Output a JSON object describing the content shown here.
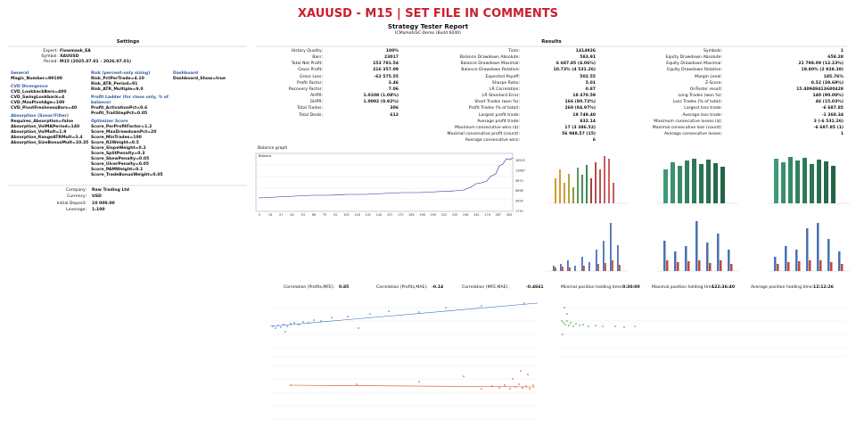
{
  "title": "XAUUSD - M15 | SET FILE IN COMMENTS",
  "report": {
    "heading": "Strategy Tester Report",
    "server": "ICMarketsSC-Demo (Build 6040)"
  },
  "settings": {
    "heading": "Settings",
    "info": [
      {
        "label": "Expert:",
        "value": "Flowmask_EA"
      },
      {
        "label": "Symbol:",
        "value": "XAUUSD"
      },
      {
        "label": "Period:",
        "value": "M15 (2025.07.01 - 2026.07.01)"
      }
    ],
    "columns": [
      [
        {
          "group": "General",
          "items": [
            "Magic_Number=99100"
          ]
        },
        {
          "group": "CVD Divergence",
          "items": [
            "CVD_LookbackBars=400",
            "CVD_SwingLookback=4",
            "CVD_MaxPivotAge=100",
            "CVD_PivotFreshnessBars=40"
          ]
        },
        {
          "group": "Absorption (Sonar/Filter)",
          "items": [
            "Requires_Absorption=false",
            "Absorption_VolMAPeriod=140",
            "Absorption_VolMult=1.9",
            "Absorption_RangeATRMult=3.4",
            "Absorption_SizeBonusMult=10.35"
          ]
        }
      ],
      [
        {
          "group": "Risk (percent-only sizing)",
          "items": [
            "Risk_PctPerTrade=4.10",
            "Risk_ATR_Period=91",
            "Risk_ATR_Multiple=9.0"
          ]
        },
        {
          "group": "Profit Ladder (for close only, % of balance)",
          "items": [
            "Profit_ActivationPct=0.6",
            "Profit_TrailStepPct=0.05"
          ]
        },
        {
          "group": "Optimizer Score",
          "items": [
            "Score_PerProfitFactor=1.2",
            "Score_MaxDrawdownPct=20",
            "Score_MinTrades=100",
            "Score_R2Weight=0.5",
            "Score_SlopeWeight=0.2",
            "Score_SplitPenalty=0.3",
            "Score_SkewPenalty=0.05",
            "Score_UlcerPenalty=0.05",
            "Score_PAMWeight=0.1",
            "Score_TradeBonusWeight=0.05"
          ]
        }
      ],
      [
        {
          "group": "Dashboard",
          "items": [
            "Dashboard_Show=true"
          ]
        }
      ]
    ],
    "account": [
      {
        "label": "Company:",
        "value": "Raw Trading Ltd"
      },
      {
        "label": "Currency:",
        "value": "USD"
      },
      {
        "label": "Initial Deposit:",
        "value": "10 000.00"
      },
      {
        "label": "Leverage:",
        "value": "1:100"
      }
    ]
  },
  "results": {
    "heading": "Results",
    "columns": [
      [
        {
          "label": "History Quality:",
          "value": "100%"
        },
        {
          "label": "Bars:",
          "value": "23017"
        },
        {
          "label": "Total Net Profit:",
          "value": "153 781.54"
        },
        {
          "label": "Gross Profit:",
          "value": "216 357.09"
        },
        {
          "label": "Gross Loss:",
          "value": "-62 575.55"
        },
        {
          "label": "Profit Factor:",
          "value": "3.46"
        },
        {
          "label": "Recovery Factor:",
          "value": "7.06"
        },
        {
          "label": "AHPR:",
          "value": "1.0108 (1.08%)"
        },
        {
          "label": "GHPR:",
          "value": "1.0092 (0.92%)"
        },
        {
          "label": "Total Trades:",
          "value": "306"
        },
        {
          "label": "Total Deals:",
          "value": "612"
        }
      ],
      [
        {
          "label": "Ticks:",
          "value": "1414926"
        },
        {
          "label": "Balance Drawdown Absolute:",
          "value": "583.91"
        },
        {
          "label": "Balance Drawdown Maximal:",
          "value": "6 687.85 (4.06%)"
        },
        {
          "label": "Balance Drawdown Relative:",
          "value": "10.73% (4 531.26)"
        },
        {
          "label": "Expected Payoff:",
          "value": "502.55"
        },
        {
          "label": "Sharpe Ratio:",
          "value": "5.01"
        },
        {
          "label": "LR Correlation:",
          "value": "0.87"
        },
        {
          "label": "LR Standard Error:",
          "value": "18 470.59"
        },
        {
          "label": "Short Trades (won %):",
          "value": "166 (80.72%)"
        },
        {
          "label": "Profit Trades (% of total):",
          "value": "260 (84.97%)"
        },
        {
          "label": "Largest profit trade:",
          "value": "19 749.40"
        },
        {
          "label": "Average profit trade:",
          "value": "832.14"
        },
        {
          "label": "Maximum consecutive wins ($):",
          "value": "17 (3 386.52)"
        },
        {
          "label": "Maximal consecutive profit (count):",
          "value": "56 988.57 (15)"
        },
        {
          "label": "Average consecutive wins:",
          "value": "6"
        }
      ],
      [
        {
          "label": "Symbols:",
          "value": "1"
        },
        {
          "label": "Equity Drawdown Absolute:",
          "value": "658.28"
        },
        {
          "label": "Equity Drawdown Maximal:",
          "value": "21 798.09 (12.23%)"
        },
        {
          "label": "Equity Drawdown Relative:",
          "value": "19.80% (2 928.38)"
        },
        {
          "label": "Margin Level:",
          "value": "185.76%"
        },
        {
          "label": "Z-Score:",
          "value": "0.52 (39.69%)"
        },
        {
          "label": "OnTester result:",
          "value": "15.40949413680428"
        },
        {
          "label": "Long Trades (won %):",
          "value": "140 (90.00%)"
        },
        {
          "label": "Loss Trades (% of total):",
          "value": "46 (15.03%)"
        },
        {
          "label": "Largest loss trade:",
          "value": "-6 687.85"
        },
        {
          "label": "Average loss trade:",
          "value": "-1 360.34"
        },
        {
          "label": "Maximum consecutive losses ($):",
          "value": "3 (-6 531.26)"
        },
        {
          "label": "Maximal consecutive loss (count):",
          "value": "-6 687.85 (1)"
        },
        {
          "label": "Average consecutive losses:",
          "value": "1"
        }
      ]
    ]
  },
  "balance_graph": {
    "heading": "Balance graph",
    "legend": "Balance",
    "yticks": [
      "16520",
      "13687",
      "9870",
      "6698",
      "3424",
      "1710"
    ],
    "xticks": [
      "0",
      "14",
      "27",
      "40",
      "53",
      "66",
      "79",
      "92",
      "105",
      "118",
      "131",
      "144",
      "157",
      "170",
      "183",
      "196",
      "209",
      "222",
      "235",
      "248",
      "261",
      "274",
      "287",
      "300"
    ]
  },
  "correlations": [
    {
      "label": "Correlation (Profits,MFE):",
      "value": "0.85"
    },
    {
      "label": "Correlation (Profits,MAE):",
      "value": "-0.14"
    },
    {
      "label": "Correlation (MFE,MAE):",
      "value": "-0.4661"
    }
  ],
  "holding_times": [
    {
      "label": "Minimal position holding time:",
      "value": "0:30:00"
    },
    {
      "label": "Maximal position holding time:",
      "value": "122:36:40"
    },
    {
      "label": "Average position holding time:",
      "value": "12:12:26"
    }
  ]
}
